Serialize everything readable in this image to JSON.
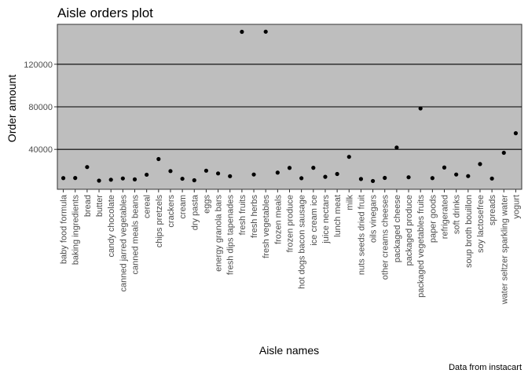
{
  "chart_data": {
    "type": "scatter",
    "title": "Aisle orders plot",
    "xlabel": "Aisle names",
    "ylabel": "Order amount",
    "caption": "Data from instacart",
    "ylim": [
      2500,
      157500
    ],
    "yticks": [
      40000,
      80000,
      120000
    ],
    "grid": true,
    "legend": "none",
    "colors": {
      "panel": "#bebebe",
      "grid": "#000000",
      "point": "#000000",
      "tick_text": "#4d4d4d"
    },
    "categories": [
      "baby food formula",
      "baking ingredients",
      "bread",
      "butter",
      "candy chocolate",
      "canned jarred vegetables",
      "canned meals beans",
      "cereal",
      "chips pretzels",
      "crackers",
      "cream",
      "dry pasta",
      "eggs",
      "energy granola bars",
      "fresh dips tapenades",
      "fresh fruits",
      "fresh herbs",
      "fresh vegetables",
      "frozen meals",
      "frozen produce",
      "hot dogs bacon sausage",
      "ice cream ice",
      "juice nectars",
      "lunch meat",
      "milk",
      "nuts seeds dried fruit",
      "oils vinegars",
      "other creams cheeses",
      "packaged cheese",
      "packaged produce",
      "packaged vegetables fruits",
      "paper goods",
      "refrigerated",
      "soft drinks",
      "soup broth bouillon",
      "soy lactosefree",
      "spreads",
      "water seltzer sparkling water",
      "yogurt"
    ],
    "values": [
      13000,
      13100,
      23400,
      10600,
      11500,
      12700,
      11800,
      16200,
      30900,
      19600,
      12400,
      11000,
      20000,
      17400,
      14800,
      150500,
      16400,
      150600,
      18200,
      22600,
      12900,
      22700,
      14200,
      16900,
      33000,
      12200,
      10300,
      13200,
      41700,
      13800,
      78500,
      13000,
      23000,
      16400,
      14900,
      26200,
      12600,
      36800,
      55200
    ]
  }
}
